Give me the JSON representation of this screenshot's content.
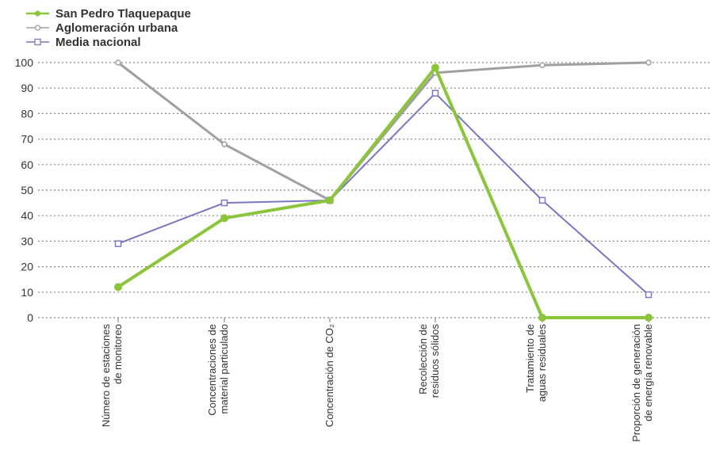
{
  "chart_data": {
    "type": "line",
    "title": "",
    "xlabel": "",
    "ylabel": "",
    "ylim": [
      0,
      100
    ],
    "yticks": [
      0,
      10,
      20,
      30,
      40,
      50,
      60,
      70,
      80,
      90,
      100
    ],
    "grid": "horizontal dotted",
    "legend_position": "top-left",
    "categories": [
      [
        "Número de estaciones",
        "de monitoreo"
      ],
      [
        "Concentraciones de",
        "material particulado"
      ],
      [
        "Concentración de CO₂"
      ],
      [
        "Recolección de",
        "residuos sólidos"
      ],
      [
        "Tratamiento de",
        "aguas residuales"
      ],
      [
        "Proporción de generación",
        "de energía renovable"
      ]
    ],
    "series": [
      {
        "name": "San Pedro Tlaquepaque",
        "color": "#8cc43c",
        "marker": "circle",
        "values": [
          12,
          39,
          46,
          98,
          0,
          0
        ]
      },
      {
        "name": "Aglomeración urbana",
        "color": "#a0a0a0",
        "marker": "circle",
        "values": [
          100,
          68,
          46,
          96,
          99,
          100
        ]
      },
      {
        "name": "Media nacional",
        "color": "#7a78c2",
        "marker": "square",
        "values": [
          29,
          45,
          46,
          88,
          46,
          9
        ]
      }
    ]
  }
}
